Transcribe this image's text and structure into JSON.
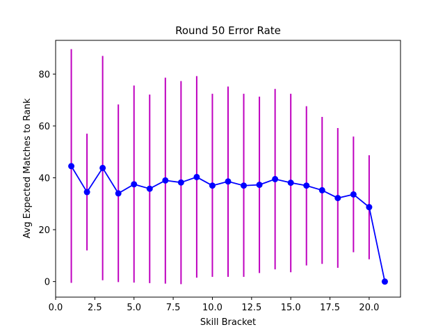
{
  "chart_data": {
    "type": "line",
    "title": "Round 50 Error Rate",
    "xlabel": "Skill Bracket",
    "ylabel": "Avg Expected Matches to Rank",
    "xlim": [
      0,
      22
    ],
    "ylim": [
      -6,
      93
    ],
    "xticks": [
      0.0,
      2.5,
      5.0,
      7.5,
      10.0,
      12.5,
      15.0,
      17.5,
      20.0
    ],
    "xtick_labels": [
      "0.0",
      "2.5",
      "5.0",
      "7.5",
      "10.0",
      "12.5",
      "15.0",
      "17.5",
      "20.0"
    ],
    "yticks": [
      0,
      20,
      40,
      60,
      80
    ],
    "ytick_labels": [
      "0",
      "20",
      "40",
      "60",
      "80"
    ],
    "grid": false,
    "line_color": "#0000ff",
    "errorbar_color": "#bf00bf",
    "series": [
      {
        "x": [
          1,
          2,
          3,
          4,
          5,
          6,
          7,
          8,
          9,
          10,
          11,
          12,
          13,
          14,
          15,
          16,
          17,
          18,
          19,
          20,
          21
        ],
        "y": [
          44.5,
          34.5,
          43.8,
          34.0,
          37.5,
          35.8,
          39.0,
          38.2,
          40.3,
          37.0,
          38.6,
          37.0,
          37.3,
          39.5,
          38.1,
          37.0,
          35.2,
          32.2,
          33.6,
          28.7,
          0.0
        ],
        "err_low": [
          -0.5,
          12.0,
          0.5,
          -0.2,
          -0.4,
          -0.6,
          -0.8,
          -1.0,
          1.5,
          1.8,
          1.8,
          1.8,
          3.3,
          4.7,
          3.6,
          6.2,
          6.8,
          5.3,
          11.3,
          8.6,
          null
        ],
        "err_high": [
          89.6,
          57.0,
          87.0,
          68.3,
          75.6,
          72.1,
          78.6,
          77.3,
          79.2,
          72.4,
          75.2,
          72.4,
          71.3,
          74.3,
          72.4,
          67.6,
          63.5,
          59.2,
          55.9,
          48.7,
          null
        ]
      }
    ]
  }
}
